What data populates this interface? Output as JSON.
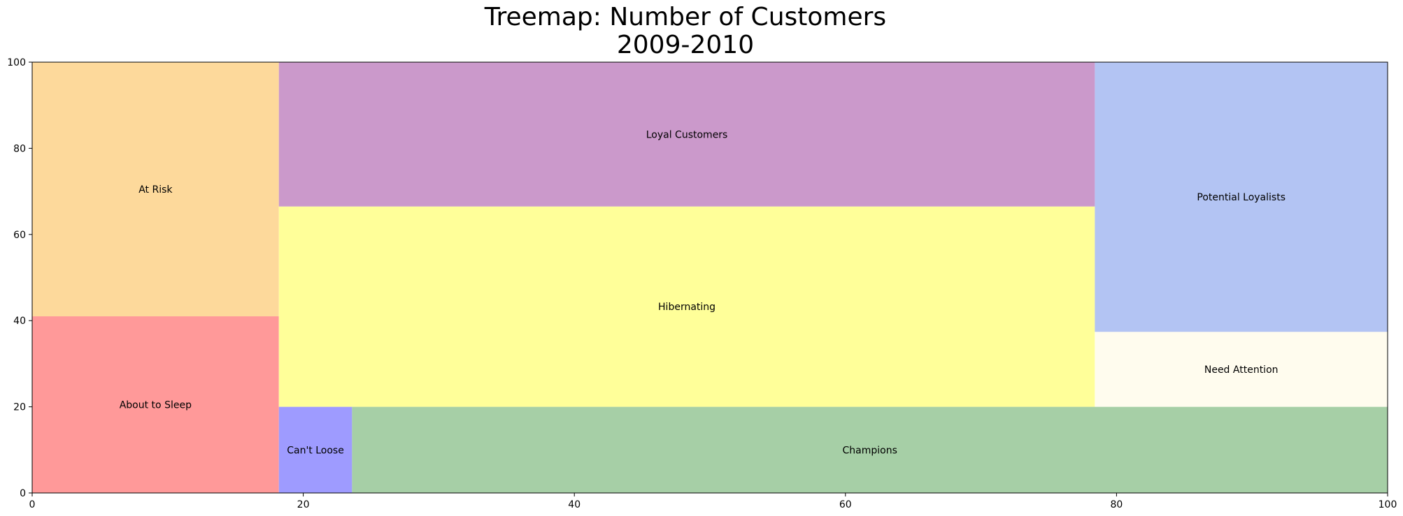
{
  "chart_data": {
    "type": "treemap",
    "title_lines": [
      "Treemap: Number of Customers",
      "2009-2010"
    ],
    "xlim": [
      0,
      100
    ],
    "ylim": [
      0,
      100
    ],
    "x_ticks": [
      0,
      20,
      40,
      60,
      80,
      100
    ],
    "y_ticks": [
      0,
      20,
      40,
      60,
      80,
      100
    ],
    "rectangles": [
      {
        "label": "About to Sleep",
        "x": 0,
        "y": 0,
        "dx": 18.2,
        "dy": 41.0,
        "color": "#ff9999"
      },
      {
        "label": "At Risk",
        "x": 0,
        "y": 41.0,
        "dx": 18.2,
        "dy": 59.0,
        "color": "#fdd99b"
      },
      {
        "label": "Can't Loose",
        "x": 18.2,
        "y": 0,
        "dx": 5.4,
        "dy": 20.0,
        "color": "#9e9bff"
      },
      {
        "label": "Champions",
        "x": 23.6,
        "y": 0,
        "dx": 76.4,
        "dy": 20.0,
        "color": "#a6cfa6"
      },
      {
        "label": "Hibernating",
        "x": 18.2,
        "y": 20.0,
        "dx": 60.2,
        "dy": 46.5,
        "color": "#ffff99"
      },
      {
        "label": "Loyal Customers",
        "x": 18.2,
        "y": 66.5,
        "dx": 60.2,
        "dy": 33.5,
        "color": "#cb99cb"
      },
      {
        "label": "Need Attention",
        "x": 78.4,
        "y": 20.0,
        "dx": 21.6,
        "dy": 17.4,
        "color": "#fffcee"
      },
      {
        "label": "Potential Loyalists",
        "x": 78.4,
        "y": 37.4,
        "dx": 21.6,
        "dy": 62.6,
        "color": "#b3c4f3"
      }
    ]
  }
}
